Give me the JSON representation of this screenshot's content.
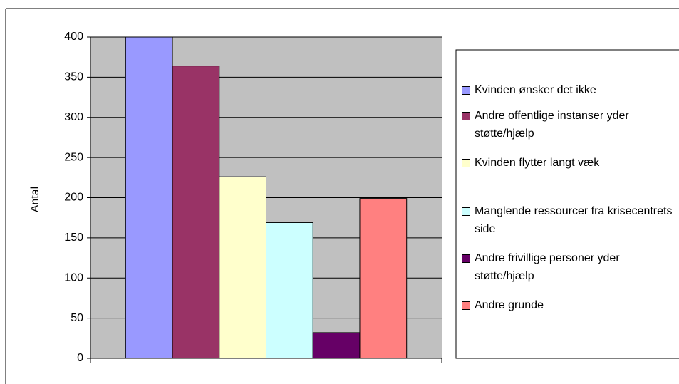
{
  "chart_data": {
    "type": "bar",
    "y_label": "Antal",
    "categories": [
      null
    ],
    "series": [
      {
        "name": "Kvinden ønsker det ikke",
        "color": "#9999ff",
        "values": [
          400
        ]
      },
      {
        "name": "Andre offentlige instanser yder støtte/hjælp",
        "color": "#993366",
        "values": [
          364
        ]
      },
      {
        "name": "Kvinden flytter langt væk",
        "color": "#ffffcc",
        "values": [
          226
        ]
      },
      {
        "name": "Manglende ressourcer fra krisecentrets side",
        "color": "#ccffff",
        "values": [
          169
        ]
      },
      {
        "name": "Andre frivillige personer yder støtte/hjælp",
        "color": "#660066",
        "values": [
          32
        ]
      },
      {
        "name": "Andre grunde",
        "color": "#ff8080",
        "values": [
          199
        ]
      }
    ],
    "ylim": [
      0,
      400
    ],
    "yticks": [
      0,
      50,
      100,
      150,
      200,
      250,
      300,
      350,
      400
    ],
    "grid": true,
    "legend": "right",
    "plot_background": "#c0c0c0"
  }
}
